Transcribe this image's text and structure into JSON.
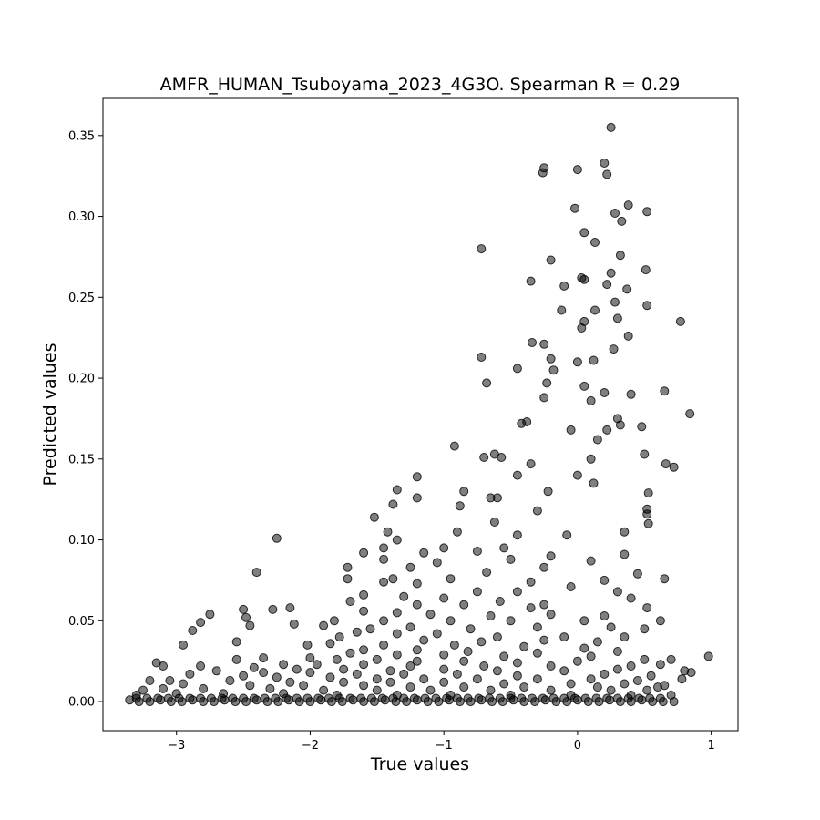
{
  "chart_data": {
    "type": "scatter",
    "title": "AMFR_HUMAN_Tsuboyama_2023_4G3O. Spearman R = 0.29",
    "xlabel": "True values",
    "ylabel": "Predicted values",
    "xlim": [
      -3.55,
      1.2
    ],
    "ylim": [
      -0.018,
      0.373
    ],
    "xticks": [
      -3,
      -2,
      -1,
      0,
      1
    ],
    "xtick_labels": [
      "−3",
      "−2",
      "−1",
      "0",
      "1"
    ],
    "yticks": [
      0.0,
      0.05,
      0.1,
      0.15,
      0.2,
      0.25,
      0.3,
      0.35
    ],
    "ytick_labels": [
      "0.00",
      "0.05",
      "0.10",
      "0.15",
      "0.20",
      "0.25",
      "0.30",
      "0.35"
    ],
    "marker_color": "#000000",
    "marker_alpha": 0.5,
    "grid": false,
    "points": [
      [
        0.25,
        0.355
      ],
      [
        -0.25,
        0.33
      ],
      [
        -0.26,
        0.327
      ],
      [
        0.0,
        0.329
      ],
      [
        0.2,
        0.333
      ],
      [
        0.22,
        0.326
      ],
      [
        0.38,
        0.307
      ],
      [
        0.52,
        0.303
      ],
      [
        0.28,
        0.302
      ],
      [
        0.33,
        0.297
      ],
      [
        -0.02,
        0.305
      ],
      [
        0.05,
        0.29
      ],
      [
        0.13,
        0.284
      ],
      [
        0.32,
        0.276
      ],
      [
        -0.72,
        0.28
      ],
      [
        -0.2,
        0.273
      ],
      [
        0.25,
        0.265
      ],
      [
        0.51,
        0.267
      ],
      [
        0.03,
        0.262
      ],
      [
        0.05,
        0.261
      ],
      [
        -0.35,
        0.26
      ],
      [
        0.22,
        0.258
      ],
      [
        0.37,
        0.255
      ],
      [
        -0.1,
        0.257
      ],
      [
        0.28,
        0.247
      ],
      [
        0.52,
        0.245
      ],
      [
        0.13,
        0.242
      ],
      [
        -0.12,
        0.242
      ],
      [
        0.05,
        0.235
      ],
      [
        0.3,
        0.237
      ],
      [
        0.77,
        0.235
      ],
      [
        0.03,
        0.231
      ],
      [
        0.38,
        0.226
      ],
      [
        -0.34,
        0.222
      ],
      [
        -0.25,
        0.221
      ],
      [
        0.27,
        0.218
      ],
      [
        -0.72,
        0.213
      ],
      [
        -0.2,
        0.212
      ],
      [
        0.0,
        0.21
      ],
      [
        0.12,
        0.211
      ],
      [
        -0.45,
        0.206
      ],
      [
        -0.18,
        0.205
      ],
      [
        -0.68,
        0.197
      ],
      [
        -0.23,
        0.197
      ],
      [
        0.05,
        0.195
      ],
      [
        0.65,
        0.192
      ],
      [
        0.2,
        0.191
      ],
      [
        0.4,
        0.19
      ],
      [
        -0.25,
        0.188
      ],
      [
        0.1,
        0.186
      ],
      [
        0.84,
        0.178
      ],
      [
        -0.38,
        0.173
      ],
      [
        -0.42,
        0.172
      ],
      [
        0.32,
        0.171
      ],
      [
        0.48,
        0.17
      ],
      [
        -0.05,
        0.168
      ],
      [
        0.22,
        0.168
      ],
      [
        0.3,
        0.175
      ],
      [
        0.15,
        0.162
      ],
      [
        0.5,
        0.153
      ],
      [
        -0.62,
        0.153
      ],
      [
        -0.7,
        0.151
      ],
      [
        -0.57,
        0.151
      ],
      [
        -0.92,
        0.158
      ],
      [
        0.66,
        0.147
      ],
      [
        0.72,
        0.145
      ],
      [
        -0.35,
        0.147
      ],
      [
        0.0,
        0.14
      ],
      [
        0.1,
        0.15
      ],
      [
        -0.45,
        0.14
      ],
      [
        -1.35,
        0.131
      ],
      [
        -1.2,
        0.139
      ],
      [
        -0.85,
        0.13
      ],
      [
        -0.22,
        0.13
      ],
      [
        0.12,
        0.135
      ],
      [
        0.53,
        0.129
      ],
      [
        -1.38,
        0.122
      ],
      [
        -1.2,
        0.126
      ],
      [
        -0.65,
        0.126
      ],
      [
        -0.6,
        0.126
      ],
      [
        -0.88,
        0.121
      ],
      [
        -0.3,
        0.118
      ],
      [
        0.52,
        0.119
      ],
      [
        0.52,
        0.116
      ],
      [
        -1.52,
        0.114
      ],
      [
        -0.62,
        0.111
      ],
      [
        0.53,
        0.11
      ],
      [
        0.35,
        0.105
      ],
      [
        -1.42,
        0.105
      ],
      [
        -0.9,
        0.105
      ],
      [
        -0.45,
        0.103
      ],
      [
        -0.08,
        0.103
      ],
      [
        -2.25,
        0.101
      ],
      [
        -1.35,
        0.1
      ],
      [
        -1.45,
        0.095
      ],
      [
        -1.0,
        0.095
      ],
      [
        -0.55,
        0.095
      ],
      [
        -1.6,
        0.092
      ],
      [
        -1.15,
        0.092
      ],
      [
        -0.75,
        0.093
      ],
      [
        -0.2,
        0.09
      ],
      [
        0.35,
        0.091
      ],
      [
        -1.45,
        0.088
      ],
      [
        -1.05,
        0.086
      ],
      [
        -0.5,
        0.088
      ],
      [
        0.1,
        0.087
      ],
      [
        -1.72,
        0.083
      ],
      [
        -1.25,
        0.083
      ],
      [
        -0.68,
        0.08
      ],
      [
        -0.25,
        0.083
      ],
      [
        0.45,
        0.079
      ],
      [
        -2.4,
        0.08
      ],
      [
        -1.38,
        0.076
      ],
      [
        -0.95,
        0.076
      ],
      [
        -0.35,
        0.074
      ],
      [
        0.2,
        0.075
      ],
      [
        0.65,
        0.076
      ],
      [
        -1.72,
        0.076
      ],
      [
        -1.45,
        0.074
      ],
      [
        -1.2,
        0.073
      ],
      [
        -0.75,
        0.068
      ],
      [
        -0.45,
        0.068
      ],
      [
        -0.05,
        0.071
      ],
      [
        0.3,
        0.068
      ],
      [
        -1.6,
        0.066
      ],
      [
        -1.3,
        0.065
      ],
      [
        -1.0,
        0.064
      ],
      [
        -0.58,
        0.062
      ],
      [
        -0.25,
        0.06
      ],
      [
        0.4,
        0.064
      ],
      [
        -1.7,
        0.062
      ],
      [
        -1.2,
        0.06
      ],
      [
        -0.85,
        0.06
      ],
      [
        -0.35,
        0.058
      ],
      [
        0.52,
        0.058
      ],
      [
        -2.5,
        0.057
      ],
      [
        -2.28,
        0.057
      ],
      [
        -2.15,
        0.058
      ],
      [
        -2.75,
        0.054
      ],
      [
        -1.6,
        0.056
      ],
      [
        -1.35,
        0.055
      ],
      [
        -1.1,
        0.054
      ],
      [
        -0.65,
        0.053
      ],
      [
        -0.2,
        0.054
      ],
      [
        0.2,
        0.053
      ],
      [
        -2.48,
        0.052
      ],
      [
        -2.82,
        0.049
      ],
      [
        -1.82,
        0.05
      ],
      [
        -1.45,
        0.05
      ],
      [
        -0.95,
        0.05
      ],
      [
        -0.5,
        0.05
      ],
      [
        0.05,
        0.05
      ],
      [
        0.62,
        0.05
      ],
      [
        -2.45,
        0.047
      ],
      [
        -2.12,
        0.048
      ],
      [
        -1.9,
        0.047
      ],
      [
        -1.55,
        0.045
      ],
      [
        -1.25,
        0.046
      ],
      [
        -0.8,
        0.045
      ],
      [
        -0.3,
        0.046
      ],
      [
        0.25,
        0.046
      ],
      [
        0.5,
        0.045
      ],
      [
        -2.88,
        0.044
      ],
      [
        -1.65,
        0.043
      ],
      [
        -1.35,
        0.042
      ],
      [
        -1.05,
        0.042
      ],
      [
        -0.6,
        0.04
      ],
      [
        -0.1,
        0.04
      ],
      [
        0.35,
        0.04
      ],
      [
        -1.78,
        0.04
      ],
      [
        -1.15,
        0.038
      ],
      [
        -0.72,
        0.037
      ],
      [
        -0.25,
        0.038
      ],
      [
        0.15,
        0.037
      ],
      [
        -2.55,
        0.037
      ],
      [
        -1.85,
        0.036
      ],
      [
        -1.45,
        0.035
      ],
      [
        -0.92,
        0.035
      ],
      [
        -0.4,
        0.034
      ],
      [
        0.05,
        0.033
      ],
      [
        -2.95,
        0.035
      ],
      [
        -2.02,
        0.035
      ],
      [
        -1.6,
        0.032
      ],
      [
        -1.2,
        0.032
      ],
      [
        -0.82,
        0.031
      ],
      [
        -0.3,
        0.03
      ],
      [
        0.3,
        0.031
      ],
      [
        -1.7,
        0.03
      ],
      [
        -1.35,
        0.029
      ],
      [
        -1.0,
        0.029
      ],
      [
        -0.55,
        0.028
      ],
      [
        0.1,
        0.028
      ],
      [
        0.98,
        0.028
      ],
      [
        -2.35,
        0.027
      ],
      [
        -2.0,
        0.027
      ],
      [
        -1.8,
        0.026
      ],
      [
        -1.5,
        0.026
      ],
      [
        -1.2,
        0.025
      ],
      [
        -0.85,
        0.025
      ],
      [
        -0.45,
        0.024
      ],
      [
        0.0,
        0.025
      ],
      [
        0.5,
        0.026
      ],
      [
        0.7,
        0.026
      ],
      [
        -3.15,
        0.024
      ],
      [
        -2.55,
        0.026
      ],
      [
        -2.2,
        0.023
      ],
      [
        -1.95,
        0.023
      ],
      [
        -1.6,
        0.023
      ],
      [
        -1.25,
        0.022
      ],
      [
        -0.7,
        0.022
      ],
      [
        -0.2,
        0.022
      ],
      [
        0.4,
        0.022
      ],
      [
        0.62,
        0.023
      ],
      [
        -3.1,
        0.022
      ],
      [
        -2.82,
        0.022
      ],
      [
        -2.42,
        0.021
      ],
      [
        -2.1,
        0.02
      ],
      [
        -1.75,
        0.02
      ],
      [
        -1.4,
        0.019
      ],
      [
        -1.0,
        0.02
      ],
      [
        -0.6,
        0.019
      ],
      [
        -0.1,
        0.019
      ],
      [
        0.3,
        0.02
      ],
      [
        0.8,
        0.019
      ],
      [
        0.85,
        0.018
      ],
      [
        -2.7,
        0.019
      ],
      [
        -2.35,
        0.018
      ],
      [
        -2.0,
        0.018
      ],
      [
        -1.65,
        0.017
      ],
      [
        -1.3,
        0.017
      ],
      [
        -0.9,
        0.017
      ],
      [
        -0.45,
        0.016
      ],
      [
        0.2,
        0.017
      ],
      [
        0.55,
        0.016
      ],
      [
        -2.9,
        0.017
      ],
      [
        -2.5,
        0.016
      ],
      [
        -2.25,
        0.015
      ],
      [
        -1.85,
        0.015
      ],
      [
        -1.5,
        0.014
      ],
      [
        -1.15,
        0.014
      ],
      [
        -0.75,
        0.014
      ],
      [
        -0.3,
        0.014
      ],
      [
        0.1,
        0.014
      ],
      [
        0.45,
        0.013
      ],
      [
        0.78,
        0.014
      ],
      [
        -3.2,
        0.013
      ],
      [
        -3.05,
        0.013
      ],
      [
        -2.6,
        0.013
      ],
      [
        -2.15,
        0.012
      ],
      [
        -1.75,
        0.012
      ],
      [
        -1.4,
        0.012
      ],
      [
        -1.0,
        0.012
      ],
      [
        -0.55,
        0.011
      ],
      [
        -0.05,
        0.011
      ],
      [
        0.35,
        0.011
      ],
      [
        0.65,
        0.01
      ],
      [
        -2.95,
        0.011
      ],
      [
        -2.45,
        0.01
      ],
      [
        -2.05,
        0.01
      ],
      [
        -1.6,
        0.01
      ],
      [
        -1.25,
        0.009
      ],
      [
        -0.85,
        0.009
      ],
      [
        -0.4,
        0.009
      ],
      [
        0.15,
        0.009
      ],
      [
        0.6,
        0.009
      ],
      [
        -3.25,
        0.007
      ],
      [
        -3.1,
        0.008
      ],
      [
        -2.8,
        0.008
      ],
      [
        -2.3,
        0.008
      ],
      [
        -1.9,
        0.007
      ],
      [
        -1.5,
        0.007
      ],
      [
        -1.1,
        0.007
      ],
      [
        -0.65,
        0.007
      ],
      [
        -0.2,
        0.007
      ],
      [
        0.25,
        0.007
      ],
      [
        0.52,
        0.007
      ],
      [
        -3.3,
        0.004
      ],
      [
        -3.0,
        0.005
      ],
      [
        -2.65,
        0.005
      ],
      [
        -2.2,
        0.005
      ],
      [
        -1.8,
        0.004
      ],
      [
        -1.35,
        0.004
      ],
      [
        -0.95,
        0.004
      ],
      [
        -0.5,
        0.004
      ],
      [
        -0.05,
        0.004
      ],
      [
        0.4,
        0.004
      ],
      [
        0.7,
        0.004
      ],
      [
        -3.35,
        0.001
      ],
      [
        -3.28,
        0.0
      ],
      [
        -3.2,
        0.0
      ],
      [
        -3.12,
        0.001
      ],
      [
        -3.04,
        0.0
      ],
      [
        -2.96,
        0.0
      ],
      [
        -2.88,
        0.001
      ],
      [
        -2.8,
        0.0
      ],
      [
        -2.72,
        0.0
      ],
      [
        -2.64,
        0.001
      ],
      [
        -2.56,
        0.0
      ],
      [
        -2.48,
        0.0
      ],
      [
        -2.4,
        0.001
      ],
      [
        -2.32,
        0.0
      ],
      [
        -2.24,
        0.0
      ],
      [
        -2.16,
        0.001
      ],
      [
        -2.08,
        0.0
      ],
      [
        -2.0,
        0.0
      ],
      [
        -1.92,
        0.001
      ],
      [
        -1.84,
        0.0
      ],
      [
        -1.76,
        0.0
      ],
      [
        -1.68,
        0.001
      ],
      [
        -1.6,
        0.0
      ],
      [
        -1.52,
        0.0
      ],
      [
        -1.44,
        0.001
      ],
      [
        -1.36,
        0.0
      ],
      [
        -1.28,
        0.0
      ],
      [
        -1.2,
        0.001
      ],
      [
        -1.12,
        0.0
      ],
      [
        -1.04,
        0.0
      ],
      [
        -0.96,
        0.001
      ],
      [
        -0.88,
        0.0
      ],
      [
        -0.8,
        0.0
      ],
      [
        -0.72,
        0.001
      ],
      [
        -0.64,
        0.0
      ],
      [
        -0.56,
        0.0
      ],
      [
        -0.48,
        0.001
      ],
      [
        -0.4,
        0.0
      ],
      [
        -0.32,
        0.0
      ],
      [
        -0.24,
        0.001
      ],
      [
        -0.16,
        0.0
      ],
      [
        -0.08,
        0.0
      ],
      [
        0.0,
        0.001
      ],
      [
        0.08,
        0.0
      ],
      [
        0.16,
        0.0
      ],
      [
        0.24,
        0.001
      ],
      [
        0.32,
        0.0
      ],
      [
        0.4,
        0.0
      ],
      [
        0.48,
        0.001
      ],
      [
        0.56,
        0.0
      ],
      [
        0.64,
        0.0
      ],
      [
        0.72,
        0.0
      ],
      [
        -3.3,
        0.002
      ],
      [
        -3.22,
        0.002
      ],
      [
        -3.14,
        0.002
      ],
      [
        -3.06,
        0.002
      ],
      [
        -2.98,
        0.002
      ],
      [
        -2.9,
        0.002
      ],
      [
        -2.82,
        0.002
      ],
      [
        -2.74,
        0.002
      ],
      [
        -2.66,
        0.002
      ],
      [
        -2.58,
        0.002
      ],
      [
        -2.5,
        0.002
      ],
      [
        -2.42,
        0.002
      ],
      [
        -2.34,
        0.002
      ],
      [
        -2.26,
        0.002
      ],
      [
        -2.18,
        0.002
      ],
      [
        -2.1,
        0.002
      ],
      [
        -2.02,
        0.002
      ],
      [
        -1.94,
        0.002
      ],
      [
        -1.86,
        0.002
      ],
      [
        -1.78,
        0.002
      ],
      [
        -1.7,
        0.002
      ],
      [
        -1.62,
        0.002
      ],
      [
        -1.54,
        0.002
      ],
      [
        -1.46,
        0.002
      ],
      [
        -1.38,
        0.002
      ],
      [
        -1.3,
        0.002
      ],
      [
        -1.22,
        0.002
      ],
      [
        -1.14,
        0.002
      ],
      [
        -1.06,
        0.002
      ],
      [
        -0.98,
        0.002
      ],
      [
        -0.9,
        0.002
      ],
      [
        -0.82,
        0.002
      ],
      [
        -0.74,
        0.002
      ],
      [
        -0.66,
        0.002
      ],
      [
        -0.58,
        0.002
      ],
      [
        -0.5,
        0.002
      ],
      [
        -0.42,
        0.002
      ],
      [
        -0.34,
        0.002
      ],
      [
        -0.26,
        0.002
      ],
      [
        -0.18,
        0.002
      ],
      [
        -0.1,
        0.002
      ],
      [
        -0.02,
        0.002
      ],
      [
        0.06,
        0.002
      ],
      [
        0.14,
        0.002
      ],
      [
        0.22,
        0.002
      ],
      [
        0.3,
        0.002
      ],
      [
        0.38,
        0.002
      ],
      [
        0.46,
        0.002
      ],
      [
        0.54,
        0.002
      ],
      [
        0.62,
        0.002
      ]
    ]
  }
}
